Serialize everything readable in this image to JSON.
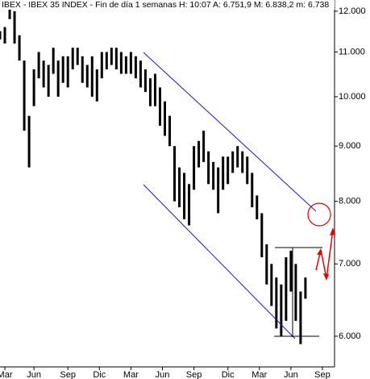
{
  "chart_data": {
    "type": "range_bar",
    "title": "IBEX - IBEX 35 INDEX - Fin de día 1 semanas H: 10:07  A: 6.751,9  M: 6.838,2  m: 6.738",
    "color": "#000000",
    "log_scale": true,
    "x": [
      0,
      2,
      4,
      6,
      8,
      10,
      12,
      14,
      16,
      18,
      20,
      22,
      24,
      26,
      28,
      30,
      32,
      34,
      36,
      38,
      40,
      42,
      44,
      46,
      48,
      50,
      52,
      54,
      56,
      58,
      60,
      62,
      64,
      66,
      68,
      70,
      72,
      74,
      76,
      78,
      80,
      82,
      84,
      86,
      88,
      90,
      92,
      94,
      96,
      98,
      100,
      102,
      104,
      106,
      108,
      110,
      112,
      114,
      116,
      118,
      120,
      122,
      124,
      126
    ],
    "high": [
      11500,
      11600,
      12100,
      12000,
      11400,
      10800,
      9600,
      10600,
      11000,
      10800,
      10700,
      11100,
      10800,
      10900,
      10900,
      11100,
      11100,
      10900,
      10700,
      10900,
      10600,
      11000,
      11000,
      11100,
      11100,
      11000,
      10900,
      11000,
      10900,
      10800,
      10600,
      10400,
      10500,
      10200,
      9900,
      9600,
      9000,
      8600,
      8500,
      8300,
      9000,
      9100,
      9300,
      8900,
      8700,
      8600,
      8800,
      8800,
      8900,
      9000,
      8900,
      8800,
      8500,
      8100,
      7800,
      7300,
      7000,
      6800,
      6700,
      7100,
      7200,
      7000,
      6600,
      6800
    ],
    "low": [
      11300,
      11200,
      11800,
      11200,
      10800,
      9300,
      8600,
      9800,
      10400,
      10200,
      10000,
      10500,
      10000,
      10300,
      10200,
      10600,
      10700,
      10300,
      10200,
      10000,
      9900,
      10400,
      10600,
      10700,
      10600,
      10500,
      10500,
      10500,
      10400,
      10200,
      10100,
      9800,
      9800,
      9400,
      9200,
      9000,
      8000,
      7900,
      7700,
      7600,
      8200,
      8600,
      8700,
      8300,
      8200,
      7800,
      8200,
      8300,
      8500,
      8600,
      8500,
      8300,
      7900,
      7700,
      7100,
      6700,
      6400,
      6100,
      6000,
      6200,
      6600,
      6200,
      5900,
      6500
    ],
    "xlim": [
      0,
      138
    ],
    "xticks": [
      {
        "value": 2,
        "label": "Mar"
      },
      {
        "value": 14,
        "label": "Jun"
      },
      {
        "value": 28,
        "label": "Sep"
      },
      {
        "value": 41,
        "label": "Dic"
      },
      {
        "value": 54,
        "label": "Mar"
      },
      {
        "value": 67,
        "label": "Jun"
      },
      {
        "value": 80,
        "label": "Sep"
      },
      {
        "value": 94,
        "label": "Dic"
      },
      {
        "value": 107,
        "label": "Mar"
      },
      {
        "value": 120,
        "label": "Jun"
      },
      {
        "value": 133,
        "label": "Sep"
      }
    ],
    "ylim": [
      5620,
      12290
    ],
    "yticks": [
      {
        "value": 6000,
        "label": "6.000"
      },
      {
        "value": 7000,
        "label": "7.000"
      },
      {
        "value": 8000,
        "label": "8.000"
      },
      {
        "value": 9000,
        "label": "9.000"
      },
      {
        "value": 10000,
        "label": "10.000"
      },
      {
        "value": 11000,
        "label": "11.000"
      },
      {
        "value": 12000,
        "label": "12.000"
      }
    ]
  }
}
